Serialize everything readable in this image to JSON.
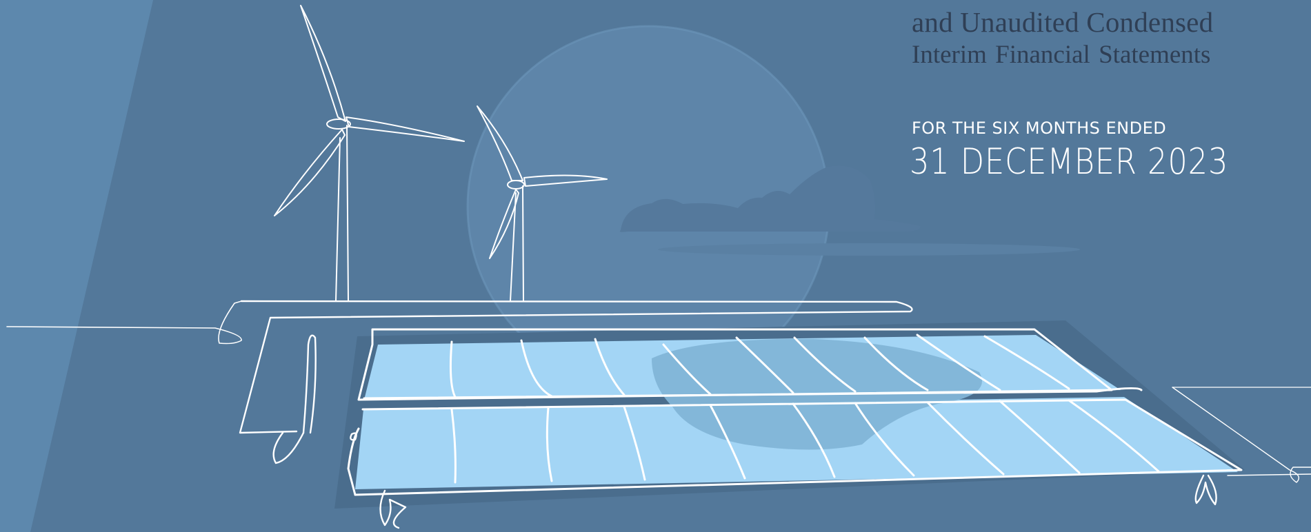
{
  "report": {
    "title_line1": "and Unaudited Condensed",
    "title_line2": "Interim Financial Statements",
    "period_label": "FOR THE SIX MONTHS ENDED",
    "period_date": "31 DECEMBER 2023"
  },
  "colors": {
    "background": "#5c85aa",
    "dark_shape": "#4d7090",
    "panel_fill": "#a3d5f5",
    "panel_shade": "#82b5d7",
    "line_art": "#ffffff",
    "title_text": "#2f3f55"
  }
}
